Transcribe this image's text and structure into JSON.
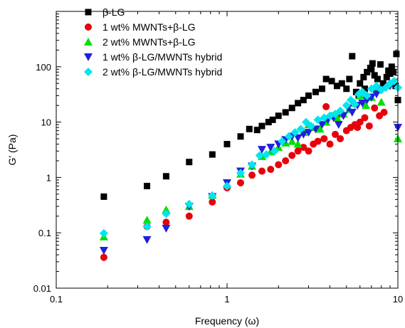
{
  "chart_data": {
    "type": "scatter",
    "xlabel": "Frequency (ω)",
    "ylabel": "G' (Pa)",
    "xscale": "log",
    "yscale": "log",
    "xlim": [
      0.1,
      10
    ],
    "ylim": [
      0.01,
      1000
    ],
    "x_ticks": [
      {
        "value": 0.1,
        "label": "0.1"
      },
      {
        "value": 1,
        "label": "1"
      },
      {
        "value": 10,
        "label": "10"
      }
    ],
    "y_ticks": [
      {
        "value": 0.01,
        "label": "0.01"
      },
      {
        "value": 0.1,
        "label": "0.1"
      },
      {
        "value": 1,
        "label": "1"
      },
      {
        "value": 10,
        "label": "10"
      },
      {
        "value": 100,
        "label": "100"
      }
    ],
    "grid": false,
    "legend_position": "top-left",
    "series": [
      {
        "name": "β-LG",
        "marker": "square",
        "color": "#000000",
        "points": [
          [
            0.19,
            0.45
          ],
          [
            0.34,
            0.7
          ],
          [
            0.44,
            1.05
          ],
          [
            0.6,
            1.9
          ],
          [
            0.82,
            2.6
          ],
          [
            1.0,
            4.0
          ],
          [
            1.2,
            5.5
          ],
          [
            1.35,
            7.5
          ],
          [
            1.5,
            7.2
          ],
          [
            1.6,
            8.5
          ],
          [
            1.75,
            10
          ],
          [
            1.85,
            11
          ],
          [
            2.0,
            13
          ],
          [
            2.2,
            15
          ],
          [
            2.4,
            18
          ],
          [
            2.6,
            22
          ],
          [
            2.8,
            25
          ],
          [
            3.0,
            30
          ],
          [
            3.3,
            35
          ],
          [
            3.6,
            40
          ],
          [
            3.8,
            60
          ],
          [
            4.1,
            55
          ],
          [
            4.4,
            45
          ],
          [
            4.7,
            50
          ],
          [
            5.0,
            40
          ],
          [
            5.2,
            60
          ],
          [
            5.4,
            155
          ],
          [
            5.7,
            35
          ],
          [
            6.0,
            50
          ],
          [
            6.3,
            65
          ],
          [
            6.6,
            80
          ],
          [
            6.9,
            95
          ],
          [
            7.1,
            115
          ],
          [
            7.3,
            70
          ],
          [
            7.6,
            60
          ],
          [
            7.9,
            110
          ],
          [
            8.2,
            50
          ],
          [
            8.6,
            65
          ],
          [
            9.0,
            75
          ],
          [
            9.4,
            80
          ],
          [
            9.8,
            170
          ],
          [
            10.0,
            25
          ],
          [
            9.7,
            45
          ],
          [
            9.2,
            100
          ],
          [
            8.8,
            85
          ],
          [
            7.0,
            90
          ],
          [
            6.4,
            40
          ],
          [
            5.9,
            30
          ]
        ]
      },
      {
        "name": "1 wt% MWNTs+β-LG",
        "marker": "circle",
        "color": "#e8000b",
        "points": [
          [
            0.19,
            0.036
          ],
          [
            0.34,
            0.13
          ],
          [
            0.44,
            0.155
          ],
          [
            0.6,
            0.2
          ],
          [
            0.82,
            0.36
          ],
          [
            1.0,
            0.65
          ],
          [
            1.2,
            0.8
          ],
          [
            1.4,
            1.1
          ],
          [
            1.6,
            1.3
          ],
          [
            1.8,
            1.4
          ],
          [
            2.0,
            1.7
          ],
          [
            2.2,
            2.0
          ],
          [
            2.4,
            2.5
          ],
          [
            2.6,
            3.0
          ],
          [
            2.8,
            3.5
          ],
          [
            3.0,
            3.0
          ],
          [
            3.2,
            4.0
          ],
          [
            3.4,
            4.5
          ],
          [
            3.7,
            5.0
          ],
          [
            4.0,
            4.0
          ],
          [
            4.3,
            6.0
          ],
          [
            4.6,
            5.0
          ],
          [
            5.0,
            7.0
          ],
          [
            5.3,
            8.0
          ],
          [
            5.6,
            9.0
          ],
          [
            6.0,
            10.0
          ],
          [
            6.4,
            12.0
          ],
          [
            6.8,
            8.5
          ],
          [
            7.3,
            18
          ],
          [
            7.8,
            13
          ],
          [
            8.3,
            15
          ],
          [
            3.8,
            19
          ],
          [
            4.4,
            13
          ],
          [
            5.8,
            8.0
          ]
        ]
      },
      {
        "name": "2 wt% MWNTs+β-LG",
        "marker": "triangle-up",
        "color": "#00e000",
        "points": [
          [
            0.19,
            0.085
          ],
          [
            0.34,
            0.17
          ],
          [
            0.44,
            0.26
          ],
          [
            0.6,
            0.3
          ],
          [
            0.82,
            0.48
          ],
          [
            1.0,
            0.75
          ],
          [
            1.2,
            1.15
          ],
          [
            1.4,
            1.6
          ],
          [
            1.6,
            2.4
          ],
          [
            1.8,
            2.9
          ],
          [
            2.0,
            3.5
          ],
          [
            2.2,
            4.2
          ],
          [
            2.4,
            4.5
          ],
          [
            2.6,
            4.0
          ],
          [
            2.8,
            6.5
          ],
          [
            3.0,
            9.0
          ],
          [
            3.2,
            8.0
          ],
          [
            3.5,
            7.5
          ],
          [
            3.8,
            10
          ],
          [
            4.1,
            13
          ],
          [
            4.4,
            12
          ],
          [
            4.8,
            14
          ],
          [
            5.2,
            17
          ],
          [
            5.6,
            22
          ],
          [
            6.0,
            30
          ],
          [
            6.5,
            20
          ],
          [
            7.0,
            28
          ],
          [
            7.5,
            38
          ],
          [
            8.0,
            23
          ],
          [
            10.0,
            5.0
          ]
        ]
      },
      {
        "name": "1 wt% β-LG/MWNTs hybrid",
        "marker": "triangle-down",
        "color": "#1f1fe0",
        "points": [
          [
            0.19,
            0.048
          ],
          [
            0.34,
            0.075
          ],
          [
            0.44,
            0.12
          ],
          [
            0.6,
            0.3
          ],
          [
            0.82,
            0.45
          ],
          [
            1.0,
            0.8
          ],
          [
            1.2,
            1.3
          ],
          [
            1.4,
            1.6
          ],
          [
            1.6,
            3.2
          ],
          [
            1.8,
            3.5
          ],
          [
            2.0,
            4.0
          ],
          [
            2.2,
            4.8
          ],
          [
            2.4,
            5.5
          ],
          [
            2.6,
            5.2
          ],
          [
            2.8,
            6.0
          ],
          [
            3.0,
            6.5
          ],
          [
            3.3,
            7.5
          ],
          [
            3.6,
            9.0
          ],
          [
            3.9,
            11
          ],
          [
            4.2,
            12
          ],
          [
            4.5,
            9.0
          ],
          [
            4.8,
            13
          ],
          [
            5.1,
            18
          ],
          [
            5.4,
            15
          ],
          [
            5.8,
            20
          ],
          [
            6.2,
            22
          ],
          [
            6.6,
            25
          ],
          [
            7.0,
            28
          ],
          [
            7.5,
            32
          ],
          [
            8.0,
            38
          ],
          [
            9.0,
            45
          ],
          [
            10.0,
            8.0
          ]
        ]
      },
      {
        "name": "2 wt% β-LG/MWNTs hybrid",
        "marker": "diamond",
        "color": "#00e5ee",
        "points": [
          [
            0.19,
            0.098
          ],
          [
            0.34,
            0.13
          ],
          [
            0.44,
            0.22
          ],
          [
            0.6,
            0.33
          ],
          [
            0.82,
            0.47
          ],
          [
            1.0,
            0.7
          ],
          [
            1.2,
            1.2
          ],
          [
            1.4,
            1.7
          ],
          [
            1.55,
            2.5
          ],
          [
            1.7,
            2.6
          ],
          [
            1.9,
            3.0
          ],
          [
            2.1,
            4.5
          ],
          [
            2.3,
            5.5
          ],
          [
            2.5,
            6.5
          ],
          [
            2.7,
            7.5
          ],
          [
            2.9,
            10
          ],
          [
            3.1,
            8.5
          ],
          [
            3.4,
            11
          ],
          [
            3.7,
            12
          ],
          [
            4.0,
            13
          ],
          [
            4.3,
            14
          ],
          [
            4.6,
            16
          ],
          [
            5.0,
            20
          ],
          [
            5.3,
            25
          ],
          [
            5.6,
            21
          ],
          [
            5.9,
            32
          ],
          [
            6.2,
            35
          ],
          [
            6.6,
            30
          ],
          [
            7.0,
            40
          ],
          [
            7.5,
            45
          ],
          [
            8.0,
            38
          ],
          [
            8.5,
            42
          ],
          [
            9.0,
            50
          ],
          [
            9.5,
            55
          ],
          [
            10.0,
            42
          ]
        ]
      }
    ]
  }
}
